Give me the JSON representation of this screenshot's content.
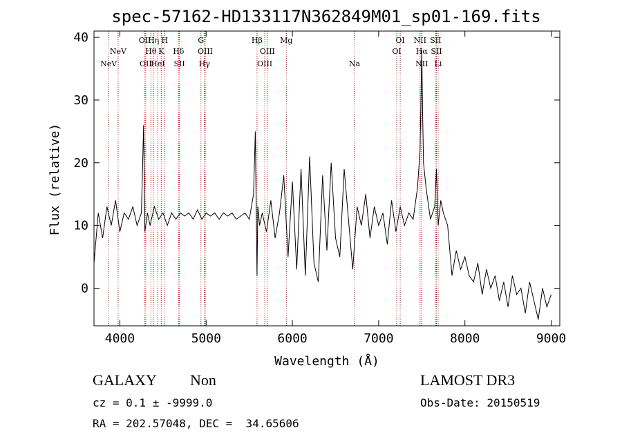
{
  "chart_data": {
    "type": "line",
    "title": "spec-57162-HD133117N362849M01_sp01-169.fits",
    "xlabel": "Wavelength (Å)",
    "ylabel": "Flux (relative)",
    "xlim": [
      3700,
      9100
    ],
    "ylim": [
      -6,
      41
    ],
    "x_ticks": [
      4000,
      5000,
      6000,
      7000,
      8000,
      9000
    ],
    "y_ticks": [
      0,
      10,
      20,
      30,
      40
    ],
    "grid": false,
    "series": [
      {
        "x": [
          3700,
          3750,
          3800,
          3850,
          3900,
          3950,
          4000,
          4050,
          4100,
          4150,
          4200,
          4250,
          4275,
          4290,
          4320,
          4350,
          4400,
          4450,
          4500,
          4550,
          4600,
          4650,
          4700,
          4750,
          4800,
          4850,
          4900,
          4950,
          5000,
          5050,
          5100,
          5150,
          5200,
          5250,
          5300,
          5350,
          5400,
          5450,
          5500,
          5550,
          5570,
          5590,
          5600,
          5620,
          5650,
          5700,
          5750,
          5800,
          5850,
          5900,
          5950,
          6000,
          6050,
          6100,
          6150,
          6200,
          6250,
          6300,
          6350,
          6400,
          6450,
          6500,
          6550,
          6600,
          6650,
          6700,
          6750,
          6800,
          6850,
          6900,
          6950,
          7000,
          7050,
          7100,
          7150,
          7200,
          7250,
          7300,
          7350,
          7400,
          7450,
          7480,
          7500,
          7510,
          7520,
          7550,
          7600,
          7650,
          7670,
          7690,
          7720,
          7750,
          7800,
          7850,
          7900,
          7950,
          8000,
          8050,
          8100,
          8150,
          8200,
          8250,
          8300,
          8350,
          8400,
          8450,
          8500,
          8550,
          8600,
          8650,
          8700,
          8750,
          8800,
          8850,
          8900,
          8950,
          9000
        ],
        "y": [
          4,
          12,
          8,
          13,
          10,
          14,
          9,
          12,
          11,
          13,
          10,
          12,
          26,
          9,
          12,
          10,
          13,
          11,
          12,
          10,
          12,
          11,
          12,
          11.5,
          12,
          11,
          12.5,
          11,
          12,
          11.5,
          12,
          11,
          12,
          11.5,
          12,
          11,
          11.5,
          12,
          11,
          15,
          25,
          2,
          13,
          10,
          12,
          9,
          14,
          8,
          12,
          18,
          5,
          17,
          3,
          19,
          2,
          21,
          4,
          1,
          18,
          6,
          20,
          8,
          5,
          19,
          11,
          3,
          13,
          10,
          15,
          8,
          13,
          10,
          12,
          7,
          14,
          9,
          13,
          10,
          12,
          11,
          16,
          22,
          38,
          28,
          20,
          16,
          11,
          13,
          19,
          10,
          14,
          12,
          10,
          2,
          6,
          3,
          5,
          2,
          1,
          4,
          -1,
          3,
          0,
          2,
          -2,
          1,
          -3,
          2,
          -1,
          0,
          -4,
          1,
          -2,
          -5,
          0,
          -3,
          -1
        ]
      }
    ],
    "lines": [
      {
        "label": "NeV",
        "wavelength": 3870,
        "row": 3
      },
      {
        "label": "NeV",
        "wavelength": 3980,
        "row": 2
      },
      {
        "label": "OII",
        "wavelength": 4290,
        "row": 1
      },
      {
        "label": "OII",
        "wavelength": 4300,
        "row": 3
      },
      {
        "label": "Hθ",
        "wavelength": 4360,
        "row": 2
      },
      {
        "label": "Hη",
        "wavelength": 4390,
        "row": 1
      },
      {
        "label": "HeI",
        "wavelength": 4440,
        "row": 3
      },
      {
        "label": "K",
        "wavelength": 4480,
        "row": 2
      },
      {
        "label": "H",
        "wavelength": 4520,
        "row": 1
      },
      {
        "label": "Hδ",
        "wavelength": 4680,
        "row": 2
      },
      {
        "label": "SII",
        "wavelength": 4690,
        "row": 3
      },
      {
        "label": "G",
        "wavelength": 4940,
        "row": 1
      },
      {
        "label": "OIII",
        "wavelength": 4990,
        "row": 2
      },
      {
        "label": "Hγ",
        "wavelength": 4980,
        "row": 3
      },
      {
        "label": "Hβ",
        "wavelength": 5590,
        "row": 1
      },
      {
        "label": "OIII",
        "wavelength": 5710,
        "row": 2
      },
      {
        "label": "OIII",
        "wavelength": 5680,
        "row": 3
      },
      {
        "label": "Mg",
        "wavelength": 5930,
        "row": 1
      },
      {
        "label": "Na",
        "wavelength": 6720,
        "row": 3
      },
      {
        "label": "OI",
        "wavelength": 7250,
        "row": 1
      },
      {
        "label": "OI",
        "wavelength": 7210,
        "row": 2
      },
      {
        "label": "NII",
        "wavelength": 7480,
        "row": 1
      },
      {
        "label": "Hα",
        "wavelength": 7500,
        "row": 2
      },
      {
        "label": "NII",
        "wavelength": 7500,
        "row": 3
      },
      {
        "label": "SII",
        "wavelength": 7660,
        "row": 1
      },
      {
        "label": "SII",
        "wavelength": 7670,
        "row": 2
      },
      {
        "label": "Li",
        "wavelength": 7690,
        "row": 3
      }
    ]
  },
  "footer": {
    "class": "GALAXY",
    "subclass": "Non",
    "survey": "LAMOST DR3",
    "cz": "cz = 0.1 ± -9999.0",
    "obs_date": "Obs-Date: 20150519",
    "coords": "RA = 202.57048, DEC =  34.65606"
  },
  "colors": {
    "line_marker": "#cc0000",
    "spectrum": "#000000"
  }
}
